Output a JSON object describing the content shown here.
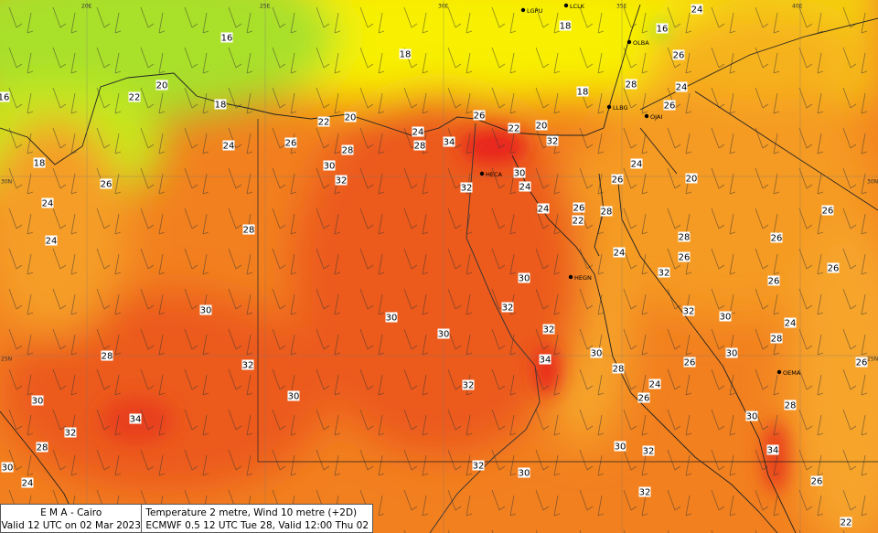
{
  "info": {
    "source": "E M A  -  Cairo",
    "valid": "Valid 12 UTC on 02 Mar 2023",
    "parameter": "Temperature  2 metre, Wind  10 metre (+2D)",
    "model": "ECMWF 0.5 12 UTC Tue 28, Valid 12:00 Thu 02"
  },
  "grid_labels": [
    "20E",
    "25E",
    "30E",
    "35E",
    "40E",
    "30N",
    "25N",
    "30N",
    "25N"
  ],
  "stations": [
    "LGPU",
    "LCLK",
    "OLBA",
    "LLBG",
    "OJAI",
    "HECA",
    "HEGN",
    "OEMA"
  ],
  "temperatures": [
    "16",
    "18",
    "16",
    "24",
    "18",
    "26",
    "20",
    "22",
    "18",
    "16",
    "18",
    "28",
    "24",
    "26",
    "22",
    "20",
    "24",
    "26",
    "22",
    "20",
    "28",
    "34",
    "32",
    "24",
    "26",
    "28",
    "30",
    "18",
    "32",
    "30",
    "26",
    "32",
    "24",
    "24",
    "26",
    "20",
    "24",
    "24",
    "26",
    "22",
    "28",
    "26",
    "24",
    "28",
    "24",
    "28",
    "26",
    "26",
    "26",
    "30",
    "32",
    "26",
    "30",
    "30",
    "32",
    "30",
    "32",
    "32",
    "30",
    "24",
    "28",
    "28",
    "30",
    "34",
    "30",
    "28",
    "26",
    "26",
    "32",
    "32",
    "24",
    "30",
    "30",
    "26",
    "28",
    "34",
    "32",
    "30",
    "28",
    "30",
    "32",
    "34",
    "30",
    "32",
    "30",
    "24",
    "26",
    "32",
    "22"
  ]
}
